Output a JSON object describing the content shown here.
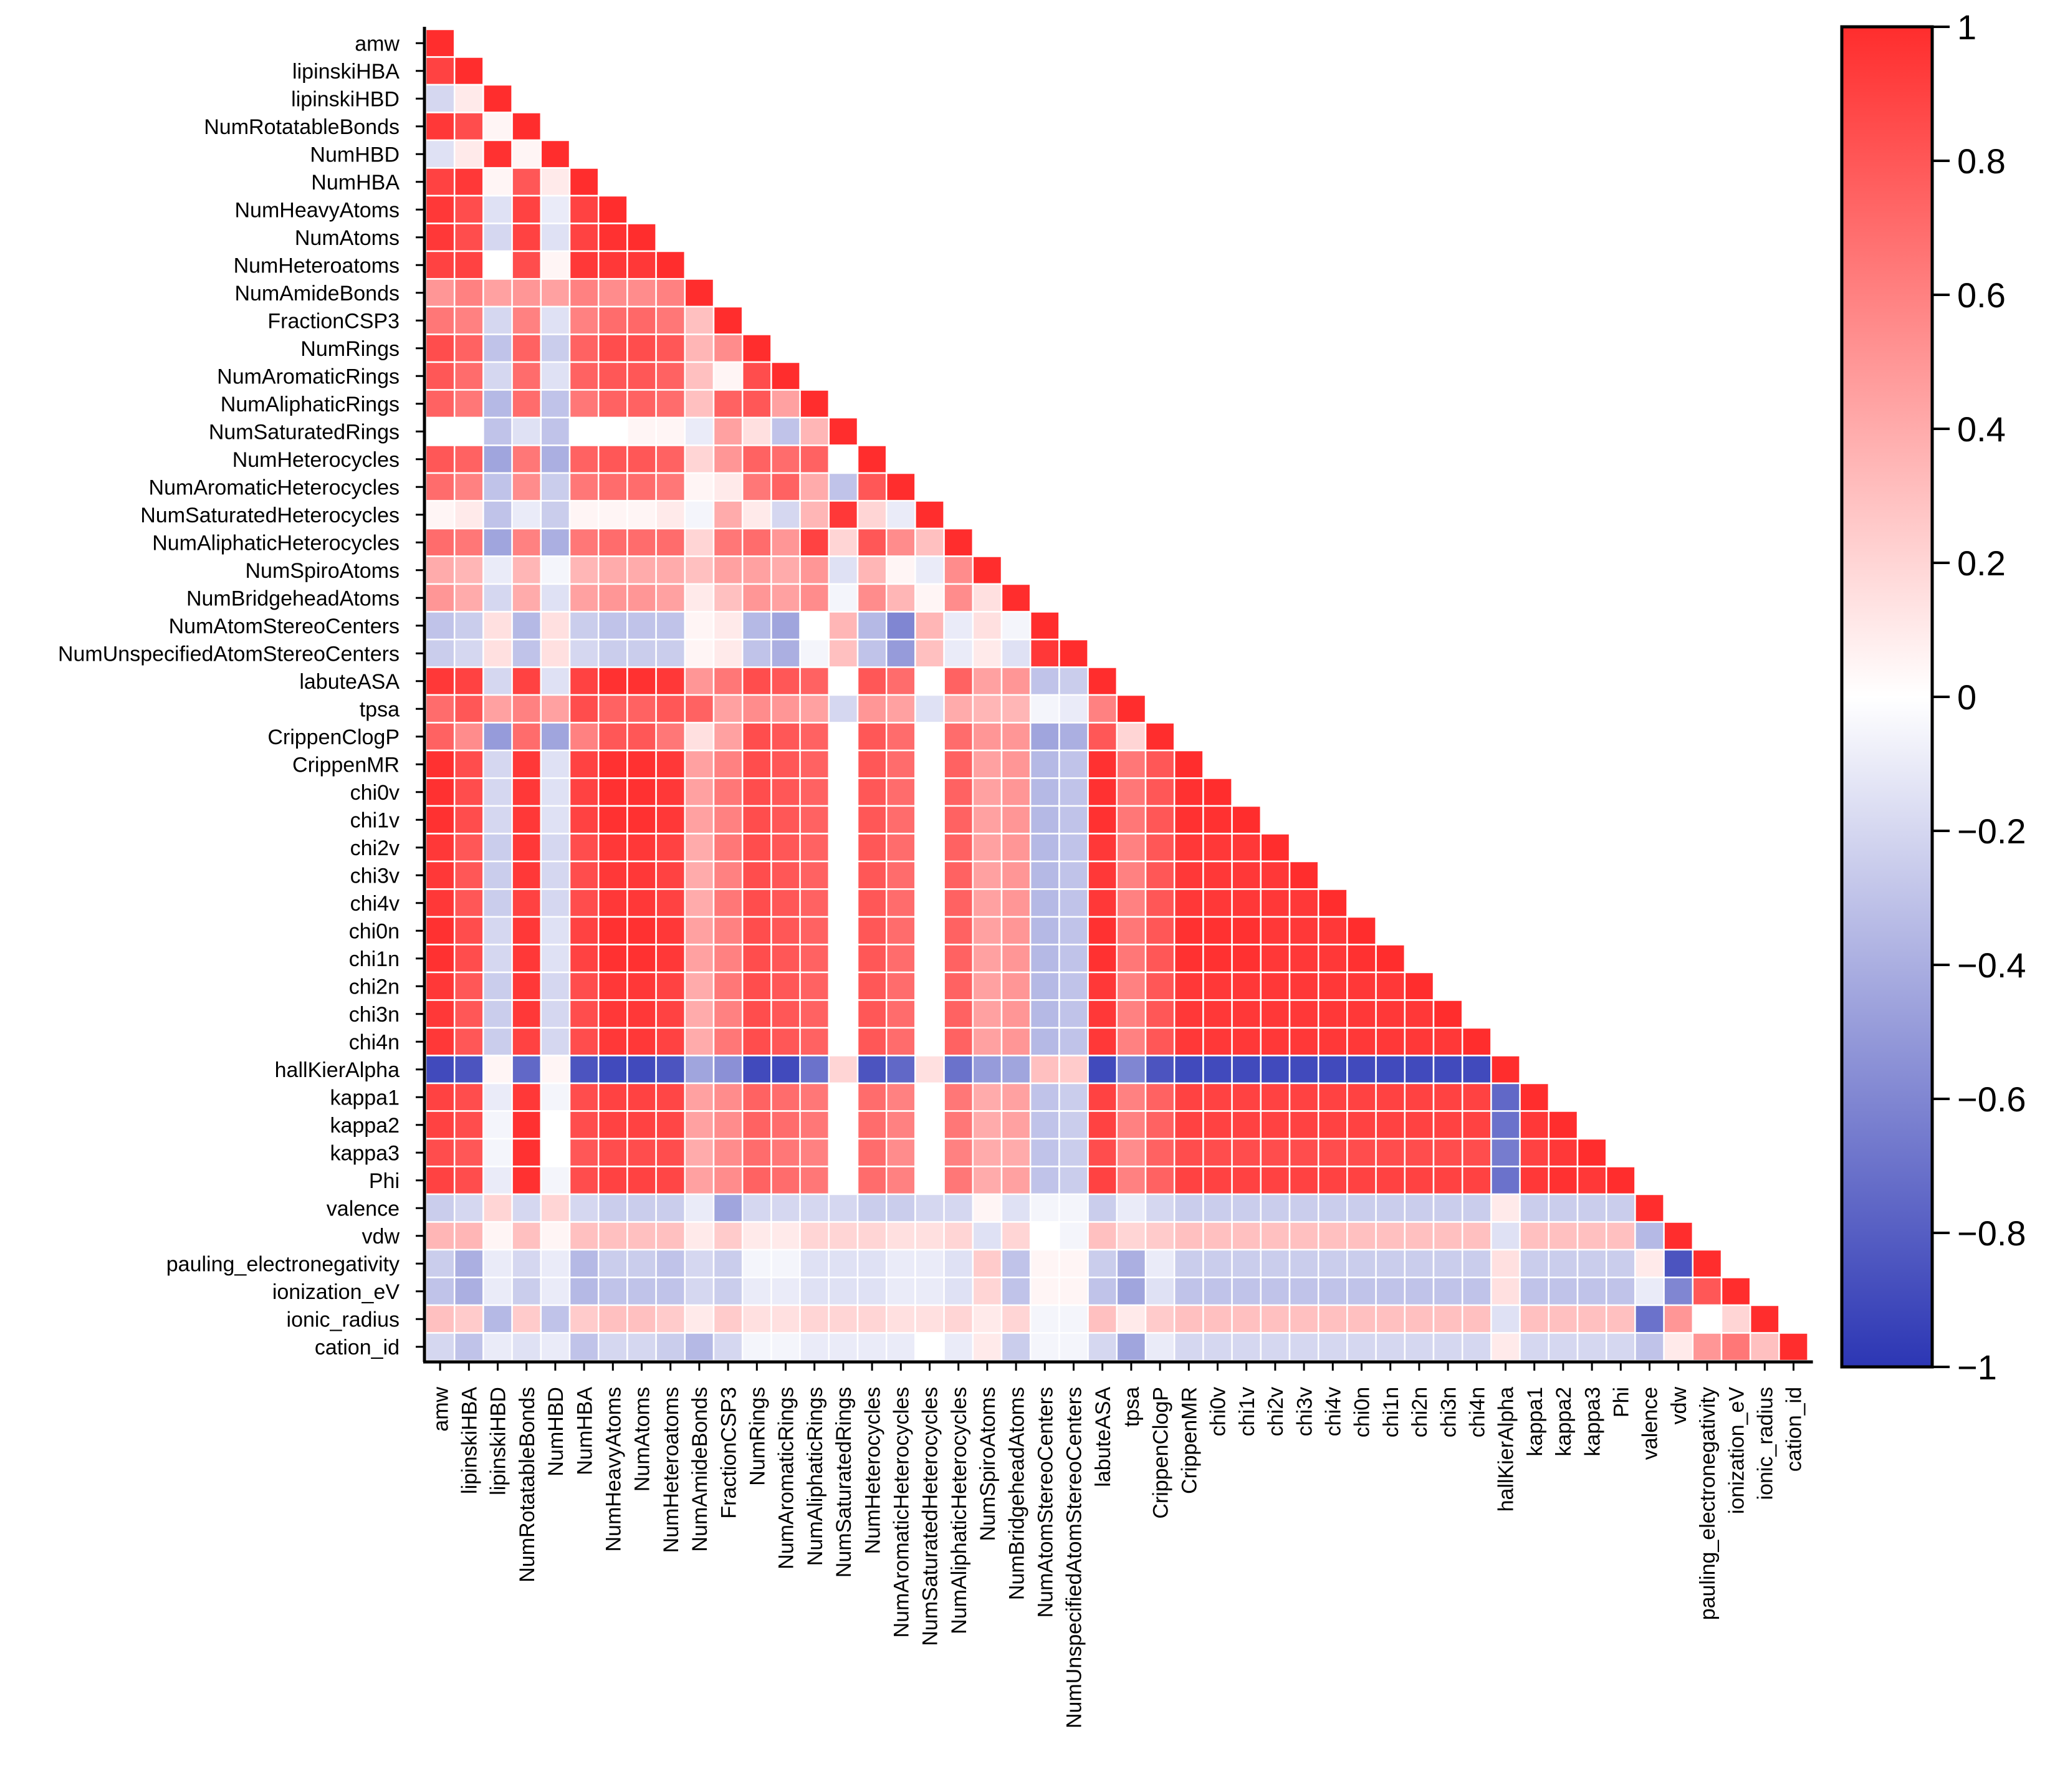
{
  "chart_data": {
    "type": "heatmap",
    "title": "",
    "variables": [
      "amw",
      "lipinskiHBA",
      "lipinskiHBD",
      "NumRotatableBonds",
      "NumHBD",
      "NumHBA",
      "NumHeavyAtoms",
      "NumAtoms",
      "NumHeteroatoms",
      "NumAmideBonds",
      "FractionCSP3",
      "NumRings",
      "NumAromaticRings",
      "NumAliphaticRings",
      "NumSaturatedRings",
      "NumHeterocycles",
      "NumAromaticHeterocycles",
      "NumSaturatedHeterocycles",
      "NumAliphaticHeterocycles",
      "NumSpiroAtoms",
      "NumBridgeheadAtoms",
      "NumAtomStereoCenters",
      "NumUnspecifiedAtomStereoCenters",
      "labuteASA",
      "tpsa",
      "CrippenClogP",
      "CrippenMR",
      "chi0v",
      "chi1v",
      "chi2v",
      "chi3v",
      "chi4v",
      "chi0n",
      "chi1n",
      "chi2n",
      "chi3n",
      "chi4n",
      "hallKierAlpha",
      "kappa1",
      "kappa2",
      "kappa3",
      "Phi",
      "valence",
      "vdw",
      "pauling_electronegativity",
      "ionization_eV",
      "ionic_radius",
      "cation_id"
    ],
    "matrix_layout": "lower-triangle",
    "values_rows": [
      [
        1
      ],
      [
        0.9,
        1
      ],
      [
        -0.2,
        0.1,
        1
      ],
      [
        0.95,
        0.85,
        0.05,
        1
      ],
      [
        -0.15,
        0.1,
        0.98,
        0.05,
        1
      ],
      [
        0.9,
        0.95,
        0.05,
        0.8,
        0.1,
        1
      ],
      [
        0.95,
        0.85,
        -0.15,
        0.9,
        -0.1,
        0.9,
        1
      ],
      [
        0.95,
        0.85,
        -0.2,
        0.9,
        -0.15,
        0.9,
        0.98,
        1
      ],
      [
        0.9,
        0.9,
        0.0,
        0.85,
        0.05,
        0.95,
        0.95,
        0.95,
        1
      ],
      [
        0.5,
        0.6,
        0.45,
        0.5,
        0.45,
        0.6,
        0.55,
        0.55,
        0.6,
        1
      ],
      [
        0.65,
        0.6,
        -0.2,
        0.6,
        -0.15,
        0.6,
        0.7,
        0.72,
        0.65,
        0.3,
        1
      ],
      [
        0.85,
        0.75,
        -0.3,
        0.75,
        -0.25,
        0.75,
        0.85,
        0.85,
        0.8,
        0.35,
        0.55,
        1
      ],
      [
        0.8,
        0.7,
        -0.2,
        0.7,
        -0.15,
        0.75,
        0.8,
        0.8,
        0.75,
        0.3,
        0.05,
        0.85,
        1
      ],
      [
        0.75,
        0.65,
        -0.35,
        0.7,
        -0.3,
        0.65,
        0.75,
        0.75,
        0.7,
        0.3,
        0.75,
        0.8,
        0.45,
        1
      ],
      [
        0.0,
        0.0,
        -0.3,
        -0.15,
        -0.3,
        0.0,
        0.0,
        0.05,
        0.05,
        -0.1,
        0.45,
        0.15,
        -0.3,
        0.35,
        1
      ],
      [
        0.8,
        0.75,
        -0.45,
        0.65,
        -0.4,
        0.75,
        0.8,
        0.8,
        0.75,
        0.2,
        0.5,
        0.75,
        0.7,
        0.75,
        0.0,
        1
      ],
      [
        0.7,
        0.6,
        -0.3,
        0.55,
        -0.25,
        0.65,
        0.7,
        0.7,
        0.65,
        0.05,
        0.1,
        0.65,
        0.75,
        0.4,
        -0.3,
        0.8,
        1
      ],
      [
        0.05,
        0.1,
        -0.3,
        -0.1,
        -0.25,
        0.05,
        0.05,
        0.05,
        0.1,
        -0.05,
        0.4,
        0.1,
        -0.2,
        0.35,
        0.95,
        0.2,
        -0.1,
        1
      ],
      [
        0.7,
        0.65,
        -0.45,
        0.6,
        -0.4,
        0.65,
        0.7,
        0.7,
        0.7,
        0.2,
        0.65,
        0.7,
        0.5,
        0.9,
        0.2,
        0.8,
        0.55,
        0.3,
        1
      ],
      [
        0.4,
        0.35,
        -0.1,
        0.35,
        -0.05,
        0.35,
        0.4,
        0.4,
        0.4,
        0.3,
        0.45,
        0.45,
        0.4,
        0.5,
        -0.15,
        0.35,
        0.05,
        -0.1,
        0.55,
        1
      ],
      [
        0.5,
        0.4,
        -0.2,
        0.4,
        -0.15,
        0.45,
        0.5,
        0.5,
        0.45,
        0.1,
        0.3,
        0.5,
        0.45,
        0.55,
        -0.05,
        0.55,
        0.35,
        0.05,
        0.55,
        0.15,
        1
      ],
      [
        -0.3,
        -0.25,
        0.15,
        -0.35,
        0.15,
        -0.25,
        -0.3,
        -0.3,
        -0.3,
        0.05,
        0.1,
        -0.35,
        -0.45,
        0.0,
        0.35,
        -0.35,
        -0.6,
        0.35,
        -0.1,
        0.15,
        -0.05,
        1
      ],
      [
        -0.25,
        -0.2,
        0.15,
        -0.3,
        0.15,
        -0.2,
        -0.25,
        -0.25,
        -0.25,
        0.05,
        0.1,
        -0.3,
        -0.4,
        -0.05,
        0.3,
        -0.3,
        -0.5,
        0.3,
        -0.1,
        0.1,
        -0.15,
        0.95,
        1
      ],
      [
        0.95,
        0.9,
        -0.2,
        0.9,
        -0.15,
        0.9,
        0.98,
        0.98,
        0.95,
        0.5,
        0.65,
        0.85,
        0.8,
        0.75,
        0.0,
        0.8,
        0.7,
        0.0,
        0.75,
        0.45,
        0.5,
        -0.3,
        -0.25,
        1
      ],
      [
        0.7,
        0.8,
        0.45,
        0.6,
        0.45,
        0.85,
        0.75,
        0.75,
        0.8,
        0.75,
        0.45,
        0.55,
        0.5,
        0.45,
        -0.2,
        0.5,
        0.45,
        -0.15,
        0.4,
        0.35,
        0.35,
        -0.05,
        -0.1,
        0.6,
        1
      ],
      [
        0.75,
        0.55,
        -0.5,
        0.7,
        -0.45,
        0.6,
        0.8,
        0.8,
        0.65,
        0.15,
        0.45,
        0.85,
        0.8,
        0.75,
        0.0,
        0.8,
        0.7,
        0.0,
        0.7,
        0.5,
        0.5,
        -0.45,
        -0.4,
        0.8,
        0.2,
        1
      ],
      [
        0.98,
        0.85,
        -0.2,
        0.95,
        -0.15,
        0.9,
        0.98,
        0.98,
        0.95,
        0.45,
        0.6,
        0.85,
        0.8,
        0.75,
        0.0,
        0.8,
        0.7,
        0.0,
        0.75,
        0.45,
        0.5,
        -0.35,
        -0.3,
        0.98,
        0.65,
        0.8,
        1
      ],
      [
        0.98,
        0.85,
        -0.2,
        0.95,
        -0.15,
        0.9,
        0.98,
        0.98,
        0.95,
        0.45,
        0.65,
        0.85,
        0.8,
        0.75,
        0.0,
        0.8,
        0.7,
        0.0,
        0.75,
        0.45,
        0.5,
        -0.35,
        -0.3,
        0.98,
        0.65,
        0.8,
        0.98,
        1
      ],
      [
        0.98,
        0.85,
        -0.2,
        0.95,
        -0.15,
        0.9,
        0.98,
        0.98,
        0.95,
        0.45,
        0.6,
        0.85,
        0.8,
        0.75,
        0.0,
        0.8,
        0.7,
        0.0,
        0.75,
        0.45,
        0.5,
        -0.35,
        -0.3,
        0.98,
        0.65,
        0.8,
        0.98,
        0.98,
        1
      ],
      [
        0.95,
        0.8,
        -0.25,
        0.95,
        -0.2,
        0.85,
        0.95,
        0.95,
        0.9,
        0.4,
        0.65,
        0.85,
        0.8,
        0.75,
        0.0,
        0.8,
        0.7,
        0.0,
        0.75,
        0.45,
        0.5,
        -0.35,
        -0.3,
        0.95,
        0.6,
        0.8,
        0.95,
        0.95,
        0.95,
        1
      ],
      [
        0.95,
        0.8,
        -0.25,
        0.95,
        -0.2,
        0.85,
        0.95,
        0.95,
        0.9,
        0.4,
        0.6,
        0.85,
        0.8,
        0.75,
        0.0,
        0.8,
        0.7,
        0.0,
        0.75,
        0.45,
        0.5,
        -0.35,
        -0.3,
        0.95,
        0.6,
        0.8,
        0.95,
        0.95,
        0.95,
        0.95,
        1
      ],
      [
        0.95,
        0.8,
        -0.25,
        0.9,
        -0.2,
        0.85,
        0.95,
        0.95,
        0.9,
        0.4,
        0.65,
        0.85,
        0.8,
        0.75,
        0.0,
        0.8,
        0.7,
        0.0,
        0.75,
        0.45,
        0.5,
        -0.35,
        -0.3,
        0.95,
        0.6,
        0.8,
        0.95,
        0.95,
        0.95,
        0.95,
        0.95,
        1
      ],
      [
        0.98,
        0.85,
        -0.2,
        0.95,
        -0.15,
        0.9,
        0.98,
        0.98,
        0.95,
        0.45,
        0.6,
        0.85,
        0.8,
        0.75,
        0.0,
        0.8,
        0.7,
        0.0,
        0.75,
        0.45,
        0.5,
        -0.35,
        -0.3,
        0.98,
        0.65,
        0.8,
        0.98,
        0.98,
        0.98,
        0.95,
        0.95,
        0.95,
        1
      ],
      [
        0.98,
        0.85,
        -0.2,
        0.95,
        -0.15,
        0.9,
        0.98,
        0.98,
        0.95,
        0.45,
        0.6,
        0.85,
        0.8,
        0.75,
        0.0,
        0.8,
        0.7,
        0.0,
        0.75,
        0.45,
        0.5,
        -0.35,
        -0.3,
        0.98,
        0.65,
        0.8,
        0.98,
        0.98,
        0.98,
        0.95,
        0.95,
        0.95,
        0.98,
        1
      ],
      [
        0.95,
        0.8,
        -0.25,
        0.95,
        -0.2,
        0.85,
        0.95,
        0.95,
        0.9,
        0.4,
        0.65,
        0.85,
        0.8,
        0.75,
        0.0,
        0.8,
        0.7,
        0.0,
        0.75,
        0.45,
        0.5,
        -0.35,
        -0.3,
        0.95,
        0.6,
        0.8,
        0.95,
        0.95,
        0.95,
        0.95,
        0.95,
        0.95,
        0.95,
        0.95,
        1
      ],
      [
        0.95,
        0.8,
        -0.25,
        0.95,
        -0.2,
        0.85,
        0.95,
        0.95,
        0.9,
        0.4,
        0.6,
        0.85,
        0.8,
        0.75,
        0.0,
        0.8,
        0.7,
        0.0,
        0.75,
        0.45,
        0.5,
        -0.35,
        -0.3,
        0.95,
        0.6,
        0.8,
        0.95,
        0.95,
        0.95,
        0.95,
        0.95,
        0.95,
        0.95,
        0.95,
        0.95,
        1
      ],
      [
        0.95,
        0.8,
        -0.25,
        0.9,
        -0.2,
        0.85,
        0.95,
        0.95,
        0.9,
        0.4,
        0.65,
        0.85,
        0.8,
        0.75,
        0.0,
        0.8,
        0.7,
        0.0,
        0.75,
        0.45,
        0.5,
        -0.35,
        -0.3,
        0.95,
        0.6,
        0.8,
        0.95,
        0.95,
        0.95,
        0.95,
        0.95,
        0.95,
        0.95,
        0.95,
        0.95,
        0.95,
        1
      ],
      [
        -0.9,
        -0.85,
        0.05,
        -0.75,
        0.05,
        -0.85,
        -0.9,
        -0.9,
        -0.85,
        -0.45,
        -0.55,
        -0.9,
        -0.9,
        -0.7,
        0.2,
        -0.85,
        -0.75,
        0.15,
        -0.7,
        -0.5,
        -0.45,
        0.3,
        0.25,
        -0.9,
        -0.6,
        -0.85,
        -0.9,
        -0.9,
        -0.9,
        -0.9,
        -0.9,
        -0.9,
        -0.9,
        -0.9,
        -0.9,
        -0.9,
        -0.9,
        1
      ],
      [
        0.9,
        0.85,
        -0.1,
        0.95,
        -0.05,
        0.85,
        0.9,
        0.9,
        0.88,
        0.45,
        0.55,
        0.75,
        0.7,
        0.65,
        0.0,
        0.7,
        0.6,
        0.0,
        0.65,
        0.4,
        0.45,
        -0.3,
        -0.25,
        0.9,
        0.6,
        0.75,
        0.9,
        0.9,
        0.9,
        0.9,
        0.9,
        0.9,
        0.9,
        0.9,
        0.9,
        0.9,
        0.9,
        -0.75,
        1
      ],
      [
        0.9,
        0.85,
        -0.05,
        0.98,
        0.0,
        0.85,
        0.9,
        0.9,
        0.88,
        0.45,
        0.55,
        0.75,
        0.7,
        0.65,
        0.0,
        0.7,
        0.6,
        0.0,
        0.65,
        0.4,
        0.45,
        -0.3,
        -0.25,
        0.9,
        0.6,
        0.75,
        0.9,
        0.9,
        0.9,
        0.9,
        0.9,
        0.9,
        0.9,
        0.9,
        0.9,
        0.9,
        0.9,
        -0.7,
        0.95,
        1
      ],
      [
        0.85,
        0.8,
        -0.05,
        0.98,
        0.0,
        0.8,
        0.85,
        0.85,
        0.85,
        0.4,
        0.55,
        0.7,
        0.65,
        0.6,
        0.0,
        0.7,
        0.55,
        0.0,
        0.6,
        0.4,
        0.4,
        -0.3,
        -0.25,
        0.85,
        0.55,
        0.75,
        0.85,
        0.85,
        0.85,
        0.85,
        0.85,
        0.85,
        0.85,
        0.85,
        0.85,
        0.85,
        0.85,
        -0.65,
        0.9,
        0.95,
        1
      ],
      [
        0.9,
        0.85,
        -0.1,
        0.98,
        -0.05,
        0.85,
        0.9,
        0.9,
        0.88,
        0.45,
        0.55,
        0.75,
        0.7,
        0.65,
        0.0,
        0.7,
        0.6,
        0.0,
        0.65,
        0.4,
        0.45,
        -0.3,
        -0.25,
        0.9,
        0.6,
        0.75,
        0.9,
        0.9,
        0.9,
        0.9,
        0.9,
        0.9,
        0.9,
        0.9,
        0.9,
        0.9,
        0.9,
        -0.7,
        0.95,
        0.98,
        0.95,
        1
      ],
      [
        -0.25,
        -0.2,
        0.2,
        -0.2,
        0.2,
        -0.2,
        -0.25,
        -0.25,
        -0.25,
        -0.1,
        -0.45,
        -0.2,
        -0.2,
        -0.2,
        -0.2,
        -0.25,
        -0.25,
        -0.2,
        -0.2,
        0.05,
        -0.15,
        -0.05,
        -0.05,
        -0.25,
        -0.1,
        -0.2,
        -0.25,
        -0.25,
        -0.25,
        -0.25,
        -0.25,
        -0.25,
        -0.25,
        -0.25,
        -0.25,
        -0.25,
        -0.25,
        0.1,
        -0.25,
        -0.25,
        -0.25,
        -0.25,
        1
      ],
      [
        0.35,
        0.35,
        0.05,
        0.3,
        0.05,
        0.3,
        0.3,
        0.3,
        0.3,
        0.1,
        0.25,
        0.1,
        0.1,
        0.2,
        0.2,
        0.2,
        0.15,
        0.15,
        0.2,
        -0.15,
        0.2,
        0.0,
        -0.05,
        0.3,
        0.2,
        0.25,
        0.3,
        0.3,
        0.3,
        0.3,
        0.3,
        0.3,
        0.3,
        0.3,
        0.3,
        0.3,
        0.3,
        -0.15,
        0.3,
        0.3,
        0.3,
        0.3,
        -0.35,
        1
      ],
      [
        -0.25,
        -0.4,
        -0.1,
        -0.2,
        -0.1,
        -0.35,
        -0.25,
        -0.25,
        -0.3,
        -0.2,
        -0.25,
        -0.05,
        -0.05,
        -0.15,
        -0.15,
        -0.15,
        -0.1,
        -0.1,
        -0.15,
        0.25,
        -0.3,
        0.05,
        0.05,
        -0.25,
        -0.4,
        -0.1,
        -0.25,
        -0.25,
        -0.25,
        -0.25,
        -0.25,
        -0.25,
        -0.25,
        -0.25,
        -0.25,
        -0.25,
        -0.25,
        0.15,
        -0.25,
        -0.25,
        -0.25,
        -0.25,
        0.1,
        -0.85,
        1
      ],
      [
        -0.3,
        -0.4,
        -0.1,
        -0.25,
        -0.1,
        -0.35,
        -0.3,
        -0.3,
        -0.3,
        -0.2,
        -0.25,
        -0.1,
        -0.1,
        -0.15,
        -0.15,
        -0.15,
        -0.1,
        -0.1,
        -0.15,
        0.2,
        -0.3,
        0.05,
        0.05,
        -0.3,
        -0.45,
        -0.15,
        -0.3,
        -0.3,
        -0.3,
        -0.3,
        -0.3,
        -0.3,
        -0.3,
        -0.3,
        -0.3,
        -0.3,
        -0.3,
        0.15,
        -0.3,
        -0.3,
        -0.3,
        -0.3,
        -0.1,
        -0.6,
        0.8,
        1
      ],
      [
        0.3,
        0.25,
        -0.35,
        0.25,
        -0.3,
        0.25,
        0.3,
        0.3,
        0.25,
        0.1,
        0.25,
        0.15,
        0.15,
        0.2,
        0.2,
        0.2,
        0.15,
        0.15,
        0.2,
        0.1,
        0.2,
        -0.05,
        -0.05,
        0.3,
        0.1,
        0.25,
        0.3,
        0.3,
        0.3,
        0.3,
        0.3,
        0.3,
        0.3,
        0.3,
        0.3,
        0.3,
        0.3,
        -0.15,
        0.3,
        0.3,
        0.3,
        0.3,
        -0.7,
        0.5,
        0.0,
        0.2,
        1
      ],
      [
        -0.2,
        -0.3,
        -0.1,
        -0.15,
        -0.1,
        -0.3,
        -0.2,
        -0.2,
        -0.25,
        -0.35,
        -0.2,
        -0.05,
        -0.05,
        -0.1,
        -0.1,
        -0.1,
        -0.1,
        0.0,
        -0.1,
        0.1,
        -0.25,
        -0.05,
        -0.05,
        -0.2,
        -0.45,
        -0.1,
        -0.2,
        -0.2,
        -0.2,
        -0.2,
        -0.2,
        -0.2,
        -0.2,
        -0.2,
        -0.2,
        -0.2,
        -0.2,
        0.1,
        -0.2,
        -0.2,
        -0.2,
        -0.2,
        -0.3,
        0.1,
        0.5,
        0.65,
        0.3,
        1
      ]
    ],
    "colorbar": {
      "min": -1,
      "max": 1,
      "ticks": [
        -1,
        -0.8,
        -0.6,
        -0.4,
        -0.2,
        0,
        0.2,
        0.4,
        0.6,
        0.8,
        1
      ],
      "tick_labels": [
        "−1",
        "−0.8",
        "−0.6",
        "−0.4",
        "−0.2",
        "0",
        "0.2",
        "0.4",
        "0.6",
        "0.8",
        "1"
      ],
      "color_low": "#2c36b4",
      "color_mid": "#ffffff",
      "color_high": "#ff2d2d"
    },
    "grid_line_color": "#ffffff",
    "axis_color": "#000000"
  }
}
